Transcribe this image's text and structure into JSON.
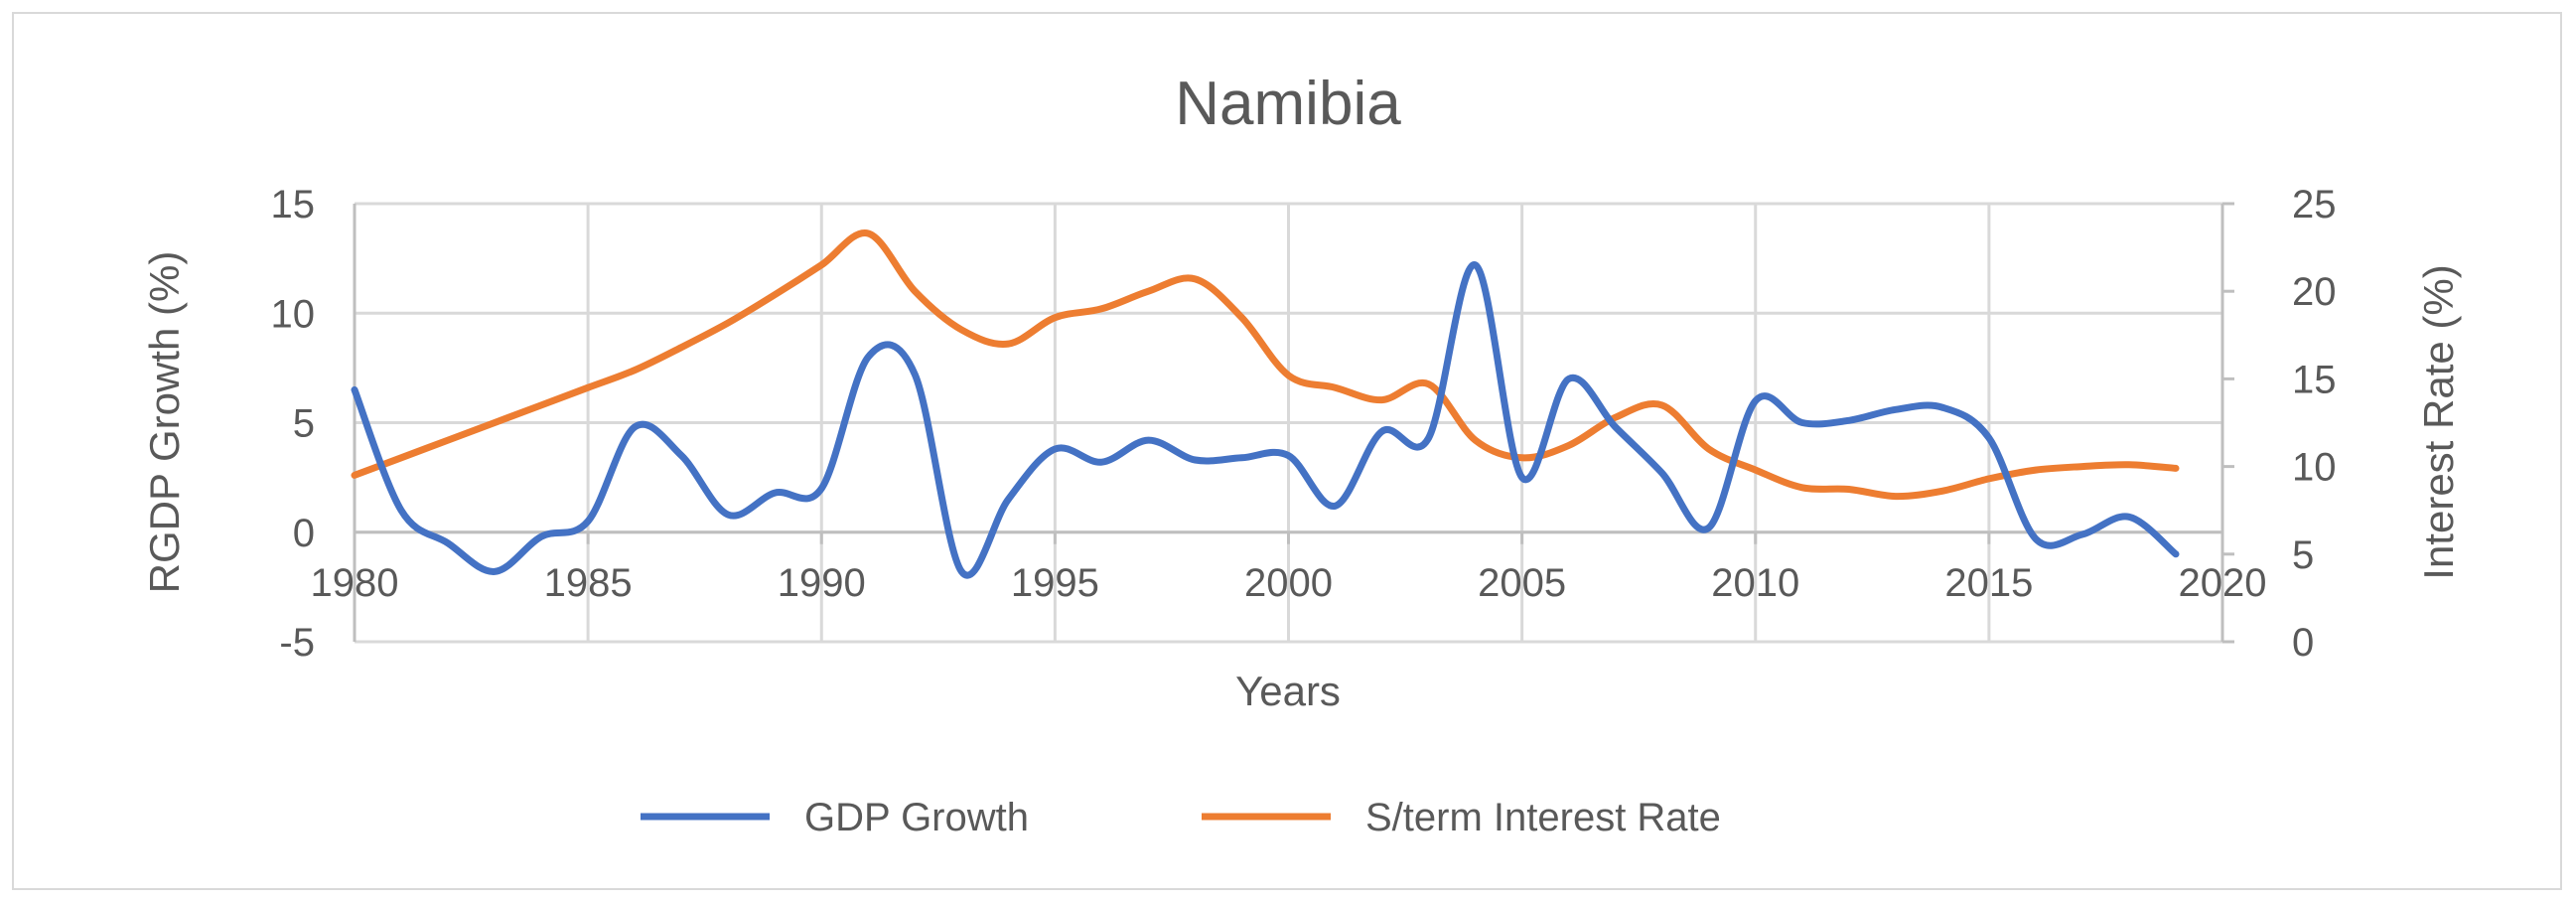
{
  "chart_data": {
    "type": "line",
    "title": "Namibia",
    "xlabel": "Years",
    "ylabel": "RGDP Growth (%)",
    "y2label": "Interest Rate (%)",
    "xlim": [
      1980,
      2020
    ],
    "ylim": [
      -5,
      15
    ],
    "y2lim": [
      0,
      25
    ],
    "xticks": [
      1980,
      1985,
      1990,
      1995,
      2000,
      2005,
      2010,
      2015,
      2020
    ],
    "yticks": [
      -5,
      0,
      5,
      10,
      15
    ],
    "y2ticks": [
      0,
      5,
      10,
      15,
      20,
      25
    ],
    "legend_position": "bottom",
    "grid": true,
    "series": [
      {
        "name": "GDP Growth",
        "axis": "left",
        "color": "#4472C4",
        "x": [
          1980,
          1981,
          1982,
          1983,
          1984,
          1985,
          1986,
          1987,
          1988,
          1989,
          1990,
          1991,
          1992,
          1993,
          1994,
          1995,
          1996,
          1997,
          1998,
          1999,
          2000,
          2001,
          2002,
          2003,
          2004,
          2005,
          2006,
          2007,
          2008,
          2009,
          2010,
          2011,
          2012,
          2013,
          2014,
          2015,
          2016,
          2017,
          2018,
          2019
        ],
        "values": [
          6.5,
          1.0,
          -0.5,
          -1.8,
          -0.2,
          0.5,
          4.8,
          3.5,
          0.8,
          1.8,
          2.0,
          8.0,
          7.2,
          -1.8,
          1.5,
          3.8,
          3.2,
          4.2,
          3.3,
          3.4,
          3.5,
          1.2,
          4.6,
          4.3,
          12.2,
          2.5,
          7.0,
          4.8,
          2.7,
          0.2,
          6.0,
          5.0,
          5.1,
          5.6,
          5.7,
          4.3,
          -0.3,
          -0.1,
          0.7,
          -1.0
        ]
      },
      {
        "name": "S/term Interest Rate",
        "axis": "right",
        "color": "#ED7D31",
        "x": [
          1980,
          1981,
          1982,
          1983,
          1984,
          1985,
          1986,
          1987,
          1988,
          1989,
          1990,
          1991,
          1992,
          1993,
          1994,
          1995,
          1996,
          1997,
          1998,
          1999,
          2000,
          2001,
          2002,
          2003,
          2004,
          2005,
          2006,
          2007,
          2008,
          2009,
          2010,
          2011,
          2012,
          2013,
          2014,
          2015,
          2016,
          2017,
          2018,
          2019
        ],
        "values": [
          9.5,
          10.5,
          11.5,
          12.5,
          13.5,
          14.5,
          15.5,
          16.8,
          18.2,
          19.8,
          21.5,
          23.3,
          20.0,
          17.8,
          17.0,
          18.5,
          19.0,
          20.0,
          20.7,
          18.5,
          15.2,
          14.5,
          13.8,
          14.7,
          11.5,
          10.5,
          11.2,
          12.8,
          13.5,
          11.0,
          9.8,
          8.8,
          8.7,
          8.3,
          8.6,
          9.3,
          9.8,
          10.0,
          10.1,
          9.9
        ]
      }
    ]
  }
}
